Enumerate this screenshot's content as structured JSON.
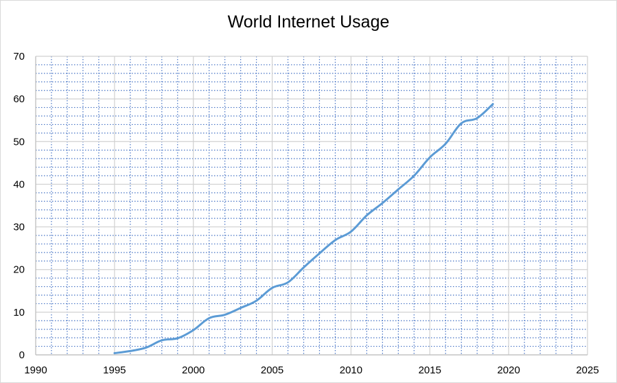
{
  "chart_data": {
    "type": "line",
    "title": "World Internet Usage",
    "xlabel": "",
    "ylabel": "",
    "xlim": [
      1990,
      2025
    ],
    "ylim": [
      0,
      70
    ],
    "x_ticks": [
      1990,
      1995,
      2000,
      2005,
      2010,
      2015,
      2020,
      2025
    ],
    "y_ticks": [
      0,
      10,
      20,
      30,
      40,
      50,
      60,
      70
    ],
    "major_grid": true,
    "minor_grid": true,
    "legend": "none",
    "series": [
      {
        "color": "#5b9bd5",
        "x": [
          1995,
          1996,
          1997,
          1998,
          1999,
          2000,
          2001,
          2002,
          2003,
          2004,
          2005,
          2006,
          2007,
          2008,
          2009,
          2010,
          2011,
          2012,
          2013,
          2014,
          2015,
          2016,
          2017,
          2018,
          2019
        ],
        "y": [
          0.4,
          0.9,
          1.7,
          3.4,
          3.9,
          5.8,
          8.6,
          9.4,
          11.0,
          12.7,
          15.7,
          17.0,
          20.5,
          23.8,
          26.9,
          28.9,
          32.7,
          35.6,
          38.8,
          42.0,
          46.3,
          49.5,
          54.3,
          55.5,
          58.8
        ]
      }
    ]
  }
}
